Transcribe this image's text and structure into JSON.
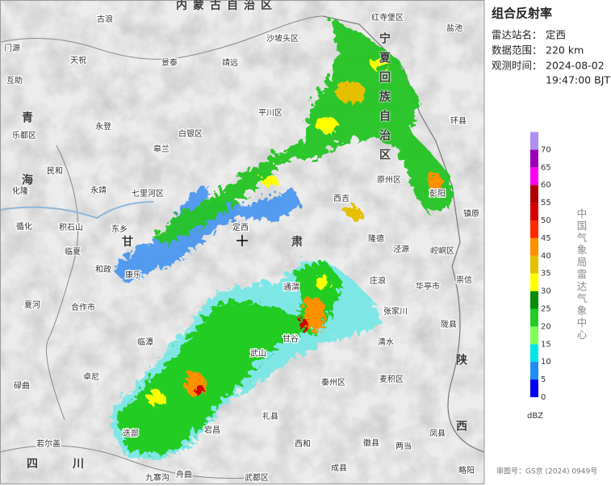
{
  "panel": {
    "title": "组合反射率",
    "station_label": "雷达站名：",
    "station": "定西",
    "range_label": "数据范围：",
    "range": "220 km",
    "time_label": "观测时间：",
    "date": "2024-08-02",
    "time": "19:47:00 BJT"
  },
  "legend": {
    "unit": "dBZ",
    "ticks": [
      0,
      5,
      10,
      15,
      20,
      25,
      30,
      35,
      40,
      45,
      50,
      55,
      60,
      65,
      70
    ],
    "colors": [
      "#0000f0",
      "#1e8cf0",
      "#00e6e6",
      "#7fff55",
      "#22cc22",
      "#0a8c0a",
      "#ffff00",
      "#e6c000",
      "#ff9000",
      "#ff2a00",
      "#d40000",
      "#b00000",
      "#ff00f0",
      "#9a00b8",
      "#b090f0"
    ]
  },
  "agency": "中国气象局雷达气象中心",
  "approval": "审图号：GS京 (2024) 0949号",
  "map": {
    "regions": [
      "内蒙古自治区",
      "宁夏回族自治区",
      "甘肃",
      "青海",
      "四川",
      "陕西"
    ],
    "places": [
      "红寺堡区",
      "盐池",
      "古浪",
      "沙坡头区",
      "门源",
      "天祝",
      "景泰",
      "靖远",
      "互助",
      "平川区",
      "环县",
      "乐都区",
      "永登",
      "白银区",
      "皋兰",
      "原州区",
      "民和",
      "永靖",
      "七里河区",
      "彭阳",
      "化隆",
      "西吉",
      "镇原",
      "循化",
      "积石山",
      "东乡",
      "临夏",
      "定西",
      "隆德",
      "泾源",
      "崆峒区",
      "和政",
      "康乐",
      "通渭",
      "庄浪",
      "华亭市",
      "崇信",
      "夏河",
      "合作市",
      "张家川",
      "陇县",
      "临潭",
      "甘谷",
      "清水",
      "卓尼",
      "秦州区",
      "麦积区",
      "碌曲",
      "宕昌",
      "礼县",
      "西和",
      "徽县",
      "两当",
      "凤县",
      "若尔盖",
      "迭部",
      "舟曲",
      "九寨沟",
      "成县",
      "略阳",
      "武都区",
      "武山"
    ]
  }
}
